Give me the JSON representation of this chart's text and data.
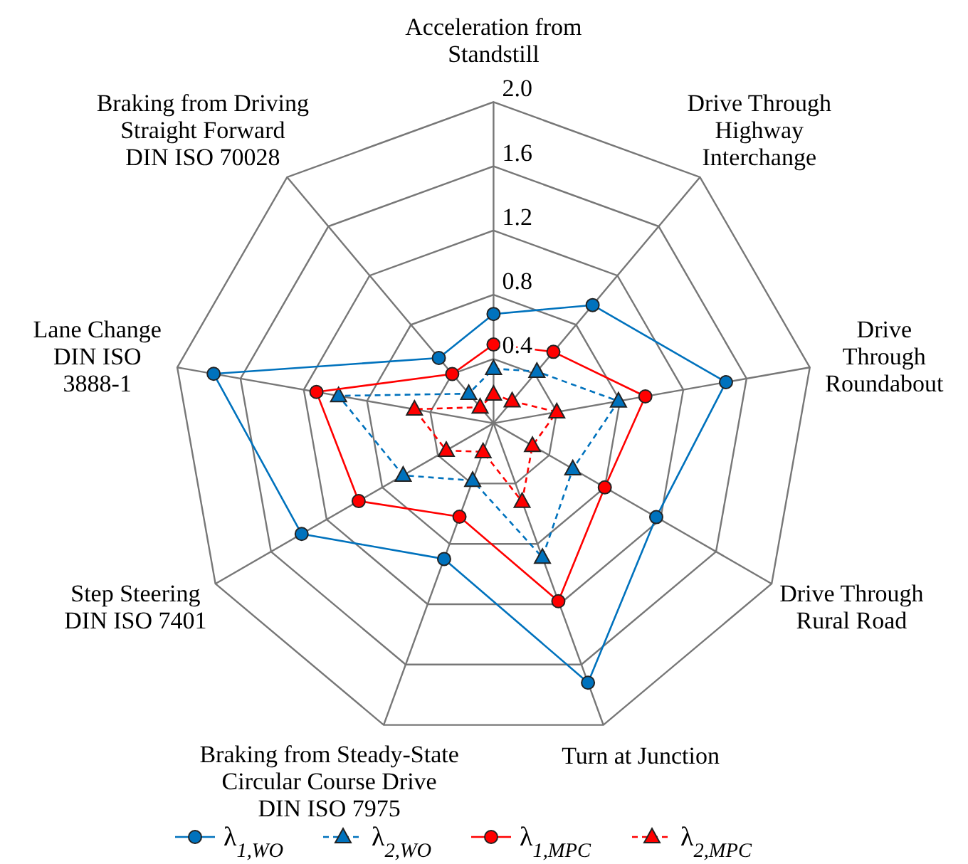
{
  "chart_data": {
    "type": "radar",
    "categories": [
      "Acceleration from\nStandstill",
      "Drive Through\nHighway\nInterchange",
      "Drive\nThrough\nRoundabout",
      "Drive Through\nRural Road",
      "Turn at Junction",
      "Braking from Steady-State\nCircular Course Drive\nDIN ISO 7975",
      "Step Steering\nDIN ISO 7401",
      "Lane Change\nDIN ISO\n3888-1",
      "Braking from Driving\nStraight Forward\nDIN ISO 70028"
    ],
    "ylim": [
      0,
      2.0
    ],
    "yticks": [
      {
        "value": 0.4,
        "label": "0.4"
      },
      {
        "value": 0.8,
        "label": "0.8"
      },
      {
        "value": 1.2,
        "label": "1.2"
      },
      {
        "value": 1.6,
        "label": "1.6"
      },
      {
        "value": 2.0,
        "label": "2.0"
      }
    ],
    "grid": true,
    "legend": "bottom",
    "series": [
      {
        "name": "λ$_{1,WO}$",
        "color": "#0072bd",
        "marker": "circle",
        "line_style": "solid",
        "values": [
          0.68,
          0.96,
          1.47,
          1.17,
          1.72,
          0.9,
          1.38,
          1.77,
          0.53
        ]
      },
      {
        "name": "λ$_{2,WO}$",
        "color": "#0072bd",
        "marker": "triangle",
        "line_style": "dashed",
        "values": [
          0.34,
          0.42,
          0.79,
          0.57,
          0.89,
          0.38,
          0.65,
          0.98,
          0.24
        ]
      },
      {
        "name": "λ$_{1,MPC}$",
        "color": "#ff0000",
        "marker": "circle",
        "line_style": "solid",
        "values": [
          0.49,
          0.58,
          0.96,
          0.8,
          1.18,
          0.62,
          0.97,
          1.12,
          0.4
        ]
      },
      {
        "name": "λ$_{2,MPC}$",
        "color": "#ff0000",
        "marker": "triangle",
        "line_style": "dashed",
        "values": [
          0.18,
          0.18,
          0.4,
          0.28,
          0.52,
          0.19,
          0.34,
          0.5,
          0.13
        ]
      }
    ]
  }
}
